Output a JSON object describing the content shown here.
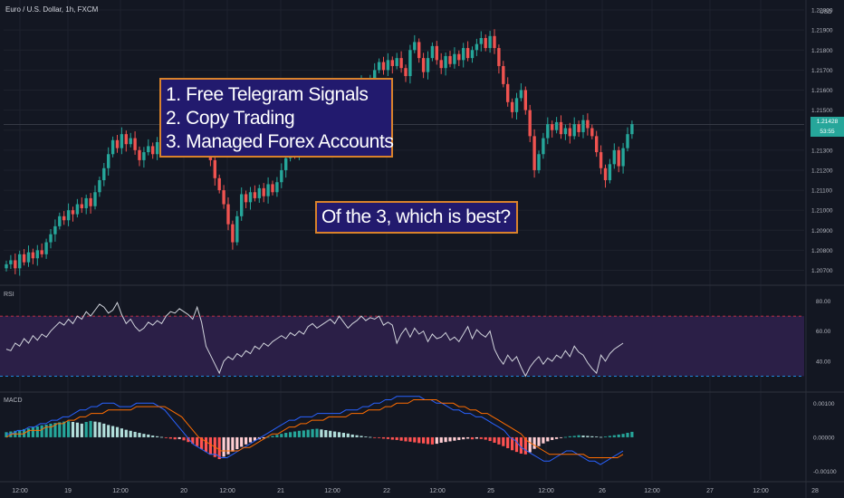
{
  "header": {
    "symbol": "Euro / U.S. Dollar, 1h, FXCM"
  },
  "price_axis": {
    "currency": "USD",
    "last_price_label": "1.21428",
    "countdown_label": "53:55"
  },
  "colors": {
    "background": "#131722",
    "up": "#26a69a",
    "down": "#ef5350",
    "rsi_line": "#d1d4dc",
    "rsi_band": "#2b1f47",
    "macd_line": "#2962ff",
    "signal_line": "#ff6d00",
    "grid": "#1e222d",
    "callout_fill": "#221a6e",
    "callout_border": "#d9822b"
  },
  "annotations": {
    "list": [
      "1. Free Telegram Signals",
      "2. Copy Trading",
      "3. Managed Forex Accounts"
    ],
    "question": "Of the 3, which is best?"
  },
  "chart_data": [
    {
      "type": "candlestick",
      "pane": "price",
      "ylim": [
        1.2063,
        1.2205
      ],
      "y_ticks": [
        "1.20700",
        "1.20800",
        "1.20900",
        "1.21000",
        "1.21100",
        "1.21200",
        "1.21300",
        "1.21400",
        "1.21500",
        "1.21600",
        "1.21700",
        "1.21800",
        "1.21900",
        "1.22000"
      ],
      "x_ticks": [
        "12:00",
        "19",
        "12:00",
        "20",
        "12:00",
        "21",
        "12:00",
        "22",
        "12:00",
        "25",
        "12:00",
        "26",
        "12:00",
        "27",
        "12:00",
        "28"
      ],
      "closes": [
        1.2073,
        1.2075,
        1.2071,
        1.2078,
        1.2074,
        1.2079,
        1.2076,
        1.208,
        1.2078,
        1.2084,
        1.2088,
        1.2092,
        1.2097,
        1.2095,
        1.21,
        1.2098,
        1.2103,
        1.2101,
        1.2106,
        1.2102,
        1.2109,
        1.2115,
        1.2121,
        1.2128,
        1.2135,
        1.2131,
        1.2138,
        1.2133,
        1.2136,
        1.213,
        1.2125,
        1.2129,
        1.2132,
        1.2128,
        1.2134,
        1.2131,
        1.2137,
        1.2143,
        1.2146,
        1.2151,
        1.2149,
        1.2154,
        1.215,
        1.2145,
        1.214,
        1.2132,
        1.2125,
        1.2116,
        1.211,
        1.2103,
        1.2093,
        1.2084,
        1.2097,
        1.2108,
        1.2104,
        1.2109,
        1.2106,
        1.2111,
        1.2107,
        1.2113,
        1.2109,
        1.2114,
        1.212,
        1.2126,
        1.2131,
        1.2128,
        1.2134,
        1.213,
        1.2136,
        1.2142,
        1.2139,
        1.2145,
        1.215,
        1.2155,
        1.2151,
        1.2158,
        1.2153,
        1.2148,
        1.2154,
        1.216,
        1.2164,
        1.216,
        1.2165,
        1.217,
        1.2174,
        1.217,
        1.2175,
        1.2172,
        1.2176,
        1.2171,
        1.2167,
        1.218,
        1.2184,
        1.2176,
        1.2169,
        1.2176,
        1.2182,
        1.2175,
        1.2171,
        1.2177,
        1.2173,
        1.2178,
        1.2175,
        1.2181,
        1.2176,
        1.218,
        1.2183,
        1.2186,
        1.2181,
        1.2187,
        1.2181,
        1.2172,
        1.2163,
        1.2154,
        1.2149,
        1.2156,
        1.216,
        1.215,
        1.2137,
        1.212,
        1.2128,
        1.2136,
        1.2143,
        1.214,
        1.2144,
        1.2138,
        1.2141,
        1.2137,
        1.2143,
        1.2139,
        1.2145,
        1.2141,
        1.2137,
        1.2129,
        1.2121,
        1.2115,
        1.2123,
        1.213,
        1.2122,
        1.2131,
        1.2138,
        1.2143
      ],
      "current_price": 1.21428
    },
    {
      "type": "line",
      "pane": "RSI",
      "ylim": [
        20,
        90
      ],
      "y_ticks": [
        "40.00",
        "60.00",
        "80.00"
      ],
      "band": [
        30,
        70
      ],
      "values": [
        48,
        47,
        52,
        50,
        55,
        52,
        57,
        54,
        58,
        56,
        60,
        63,
        66,
        64,
        68,
        65,
        70,
        68,
        73,
        70,
        74,
        78,
        76,
        72,
        74,
        79,
        71,
        65,
        68,
        63,
        60,
        62,
        66,
        64,
        67,
        65,
        70,
        73,
        72,
        75,
        73,
        71,
        68,
        76,
        66,
        50,
        44,
        38,
        32,
        40,
        43,
        41,
        45,
        43,
        47,
        45,
        50,
        48,
        52,
        50,
        53,
        55,
        57,
        55,
        59,
        57,
        60,
        58,
        63,
        65,
        62,
        64,
        66,
        68,
        65,
        70,
        66,
        62,
        65,
        67,
        70,
        67,
        69,
        68,
        70,
        64,
        66,
        64,
        52,
        58,
        62,
        56,
        62,
        58,
        60,
        53,
        58,
        55,
        56,
        59,
        54,
        56,
        53,
        58,
        63,
        55,
        61,
        58,
        56,
        60,
        48,
        42,
        38,
        44,
        40,
        43,
        36,
        30,
        36,
        40,
        43,
        38,
        42,
        40,
        44,
        42,
        47,
        43,
        50,
        46,
        44,
        39,
        35,
        32,
        44,
        40,
        45,
        48,
        50,
        52
      ],
      "title": "RSI"
    },
    {
      "type": "bar",
      "pane": "MACD",
      "ylim": [
        -0.00125,
        0.0013
      ],
      "y_ticks": [
        "0.00100",
        "0.00000",
        "-0.00100"
      ],
      "histogram": [
        0.00015,
        0.00017,
        0.00019,
        0.00021,
        0.00024,
        0.00026,
        0.0003,
        0.00032,
        0.00035,
        0.00037,
        0.0004,
        0.00042,
        0.00044,
        0.00046,
        0.00047,
        0.00045,
        0.00043,
        0.0004,
        0.00045,
        0.00048,
        0.00046,
        0.00044,
        0.0004,
        0.00036,
        0.00033,
        0.0003,
        0.00026,
        0.00022,
        0.00019,
        0.00016,
        0.00013,
        0.0001,
        8e-05,
        5e-05,
        3e-05,
        1e-05,
        -2e-05,
        -4e-05,
        -6e-05,
        -5e-05,
        -9e-05,
        -0.00014,
        -0.00019,
        -0.00026,
        -0.00035,
        -0.00043,
        -0.00051,
        -0.00058,
        -0.00064,
        -0.00057,
        -0.0005,
        -0.00042,
        -0.00035,
        -0.00028,
        -0.00021,
        -0.00015,
        -0.0001,
        -6e-05,
        -3e-05,
        1e-05,
        4e-05,
        7e-05,
        0.0001,
        0.00013,
        0.00015,
        0.00017,
        0.00019,
        0.0002,
        0.00022,
        0.00024,
        0.00025,
        0.00023,
        0.00021,
        0.00019,
        0.00017,
        0.00015,
        0.00013,
        0.00011,
        8e-05,
        6e-05,
        4e-05,
        2e-05,
        1e-05,
        -1e-05,
        -2e-05,
        -4e-05,
        -5e-05,
        -7e-05,
        -8e-05,
        -0.0001,
        -0.00012,
        -0.00013,
        -0.00015,
        -0.00017,
        -0.00018,
        -0.0002,
        -0.00021,
        -0.00019,
        -0.00016,
        -0.00014,
        -0.00012,
        -0.0001,
        -8e-05,
        -6e-05,
        -4e-05,
        -6e-05,
        -4e-05,
        -5e-05,
        -7e-05,
        -0.00011,
        -0.00016,
        -0.00021,
        -0.00026,
        -0.00032,
        -0.00038,
        -0.00043,
        -0.00048,
        -0.0005,
        -0.00044,
        -0.00034,
        -0.00026,
        -0.00018,
        -0.00012,
        -8e-05,
        -5e-05,
        -2e-05,
        1e-05,
        3e-05,
        4e-05,
        6e-05,
        5e-05,
        4e-05,
        3e-05,
        2e-05,
        1e-05,
        2e-05,
        4e-05,
        6e-05,
        8e-05,
        0.0001,
        0.00013,
        0.00016
      ],
      "macd": [
        0.0001,
        0.0001,
        0.0002,
        0.0002,
        0.0003,
        0.0003,
        0.0004,
        0.0004,
        0.0005,
        0.0005,
        0.0006,
        0.0006,
        0.0007,
        0.0008,
        0.0008,
        0.0009,
        0.0009,
        0.001,
        0.001,
        0.001,
        0.0009,
        0.0009,
        0.0009,
        0.001,
        0.001,
        0.001,
        0.001,
        0.0009,
        0.0008,
        0.0006,
        0.0004,
        0.0002,
        0.0,
        -0.0002,
        -0.0003,
        -0.0004,
        -0.0005,
        -0.0005,
        -0.0006,
        -0.0006,
        -0.0005,
        -0.0004,
        -0.0003,
        -0.0002,
        -0.0001,
        0.0,
        0.0001,
        0.0002,
        0.0003,
        0.0004,
        0.0005,
        0.0005,
        0.0006,
        0.0006,
        0.0006,
        0.0007,
        0.0007,
        0.0007,
        0.0007,
        0.0007,
        0.0008,
        0.0008,
        0.0008,
        0.0009,
        0.0009,
        0.001,
        0.001,
        0.0011,
        0.0011,
        0.0012,
        0.0012,
        0.0012,
        0.0012,
        0.0012,
        0.0011,
        0.0011,
        0.001,
        0.001,
        0.0009,
        0.0008,
        0.0008,
        0.0007,
        0.0007,
        0.0006,
        0.0006,
        0.0005,
        0.0004,
        0.0003,
        0.0002,
        0.0,
        -0.0001,
        -0.0003,
        -0.0004,
        -0.0005,
        -0.0006,
        -0.0007,
        -0.0007,
        -0.0006,
        -0.0005,
        -0.0004,
        -0.0004,
        -0.0005,
        -0.0006,
        -0.0007,
        -0.0007,
        -0.0008,
        -0.0007,
        -0.0006,
        -0.0005,
        -0.0004
      ],
      "signal": [
        0.0,
        0.0001,
        0.0001,
        0.0001,
        0.0002,
        0.0002,
        0.0002,
        0.0003,
        0.0003,
        0.0004,
        0.0004,
        0.0005,
        0.0005,
        0.0006,
        0.0006,
        0.0007,
        0.0007,
        0.0007,
        0.0008,
        0.0008,
        0.0008,
        0.0008,
        0.0008,
        0.0009,
        0.0009,
        0.0009,
        0.0009,
        0.0009,
        0.0009,
        0.0008,
        0.0007,
        0.0006,
        0.0004,
        0.0002,
        0.0,
        -0.0001,
        -0.0002,
        -0.0003,
        -0.0004,
        -0.0004,
        -0.0004,
        -0.0004,
        -0.0003,
        -0.0003,
        -0.0002,
        -0.0001,
        0.0,
        0.0001,
        0.0001,
        0.0002,
        0.0003,
        0.0003,
        0.0004,
        0.0004,
        0.0005,
        0.0005,
        0.0005,
        0.0006,
        0.0006,
        0.0006,
        0.0006,
        0.0007,
        0.0007,
        0.0007,
        0.0008,
        0.0008,
        0.0008,
        0.0009,
        0.0009,
        0.001,
        0.001,
        0.001,
        0.0011,
        0.0011,
        0.0011,
        0.0011,
        0.0011,
        0.001,
        0.001,
        0.001,
        0.0009,
        0.0009,
        0.0008,
        0.0008,
        0.0007,
        0.0007,
        0.0006,
        0.0005,
        0.0004,
        0.0003,
        0.0002,
        0.0001,
        -0.0001,
        -0.0002,
        -0.0003,
        -0.0004,
        -0.0005,
        -0.0005,
        -0.0005,
        -0.0005,
        -0.0005,
        -0.0005,
        -0.0005,
        -0.0006,
        -0.0006,
        -0.0006,
        -0.0006,
        -0.0006,
        -0.0006,
        -0.0005
      ],
      "title": "MACD"
    }
  ]
}
